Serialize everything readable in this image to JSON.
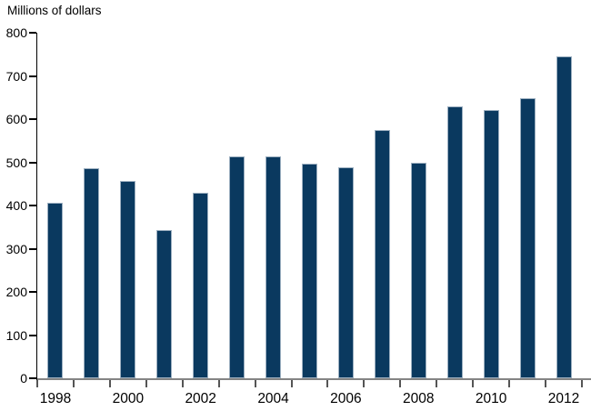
{
  "title": "Millions of dollars",
  "colors": {
    "bar": "#0a395f",
    "bar_border": "#9cafc0",
    "x_axis_line": "#848484",
    "y_axis_line": "#000000",
    "text": "#000000"
  },
  "chart_data": {
    "type": "bar",
    "title": "Millions of dollars",
    "xlabel": "",
    "ylabel": "Millions of dollars",
    "categories": [
      "1998",
      "1999",
      "2000",
      "2001",
      "2002",
      "2003",
      "2004",
      "2005",
      "2006",
      "2007",
      "2008",
      "2009",
      "2010",
      "2011",
      "2012"
    ],
    "values": [
      407,
      487,
      456,
      343,
      430,
      513,
      514,
      497,
      489,
      575,
      500,
      630,
      621,
      649,
      746
    ],
    "ylim": [
      0,
      800
    ],
    "yticks": [
      0,
      100,
      200,
      300,
      400,
      500,
      600,
      700,
      800
    ],
    "xtick_labels_shown": [
      "1998",
      "2000",
      "2002",
      "2004",
      "2006",
      "2008",
      "2010",
      "2012"
    ],
    "grid": false,
    "legend": false,
    "bar_color": "#0a395f"
  }
}
